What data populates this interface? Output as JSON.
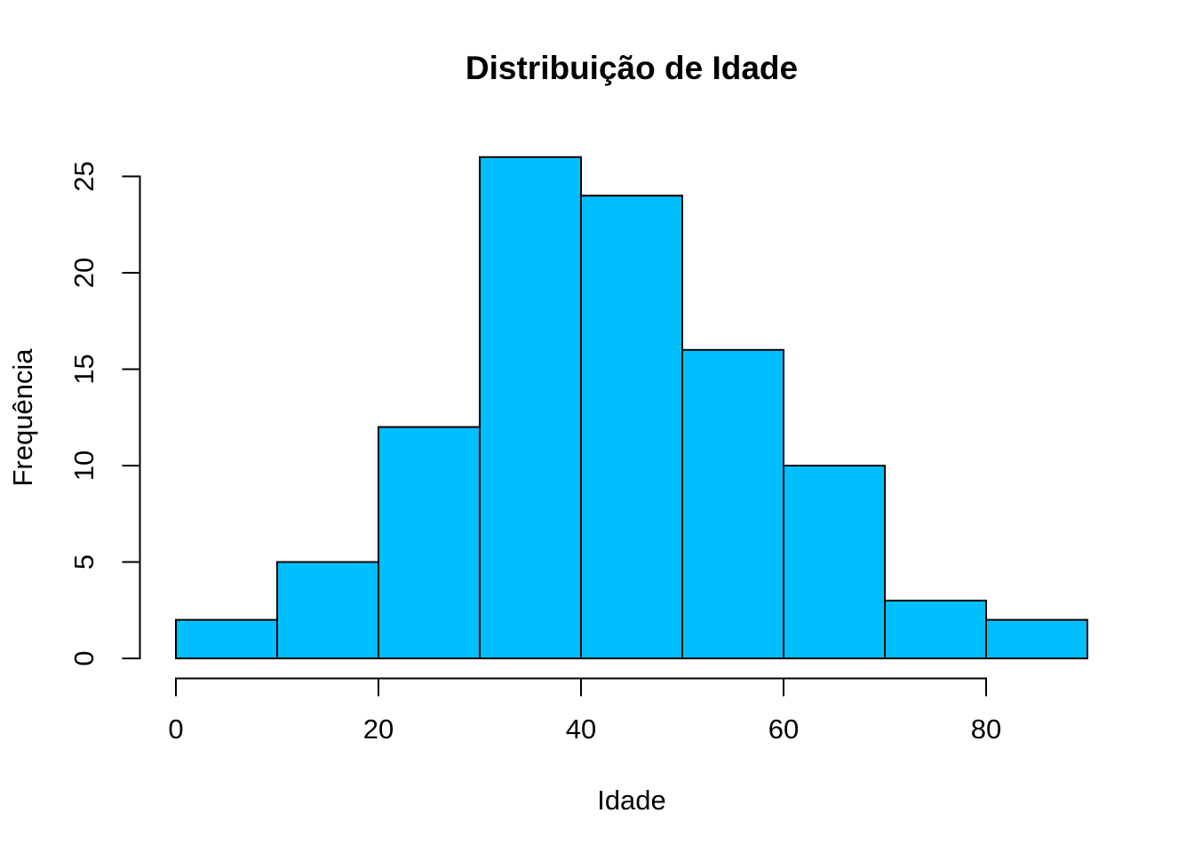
{
  "chart_data": {
    "type": "bar",
    "chart_style": "histogram",
    "title": "Distribuição de Idade",
    "xlabel": "Idade",
    "ylabel": "Frequência",
    "bin_edges": [
      0,
      10,
      20,
      30,
      40,
      50,
      60,
      70,
      80,
      90
    ],
    "counts": [
      2,
      5,
      12,
      26,
      24,
      16,
      10,
      3,
      2
    ],
    "x_ticks": [
      0,
      20,
      40,
      60,
      80
    ],
    "y_ticks": [
      0,
      5,
      10,
      15,
      20,
      25
    ],
    "xlim": [
      0,
      90
    ],
    "ylim": [
      0,
      26
    ],
    "legend": null,
    "grid": false,
    "colors": {
      "bar_fill": "#00BFFF",
      "bar_stroke": "#000000",
      "axis": "#000000",
      "background": "#FFFFFF"
    }
  }
}
